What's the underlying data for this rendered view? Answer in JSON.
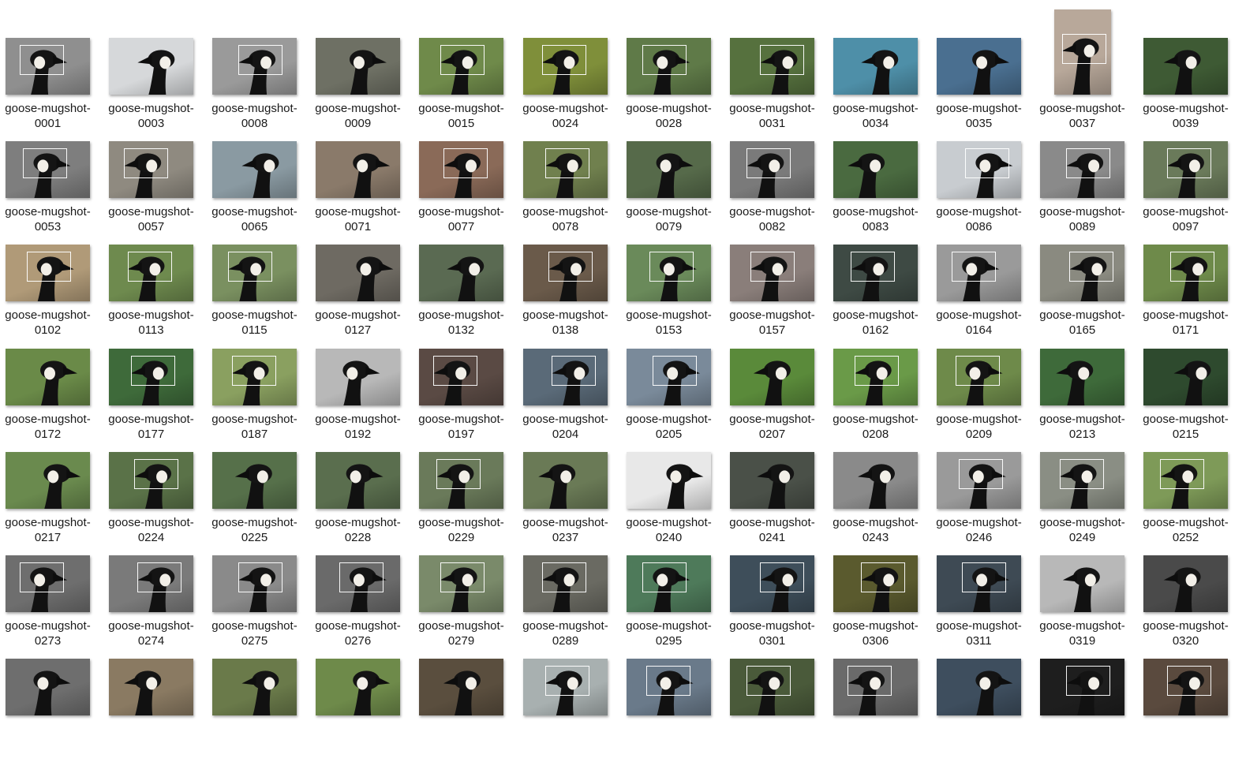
{
  "label_prefix": "goose-mugshot-",
  "columns": 12,
  "files": [
    {
      "num": "0001",
      "bg": "#8f8f8f",
      "box": true
    },
    {
      "num": "0003",
      "bg": "#d6d8da",
      "box": false
    },
    {
      "num": "0008",
      "bg": "#9a9a9a",
      "box": true
    },
    {
      "num": "0009",
      "bg": "#6e7064",
      "box": false
    },
    {
      "num": "0015",
      "bg": "#6f8a4a",
      "box": true
    },
    {
      "num": "0024",
      "bg": "#7f8f3a",
      "box": true
    },
    {
      "num": "0028",
      "bg": "#5f7a48",
      "box": true
    },
    {
      "num": "0031",
      "bg": "#56713e",
      "box": true
    },
    {
      "num": "0034",
      "bg": "#4e8fa8",
      "box": false
    },
    {
      "num": "0035",
      "bg": "#4a6f90",
      "box": false
    },
    {
      "num": "0037",
      "bg": "#b8a89a",
      "box": true,
      "tall": true
    },
    {
      "num": "0039",
      "bg": "#3e5a34",
      "box": false
    },
    {
      "num": "0053",
      "bg": "#7e7e7e",
      "box": true
    },
    {
      "num": "0057",
      "bg": "#8f8a80",
      "box": true
    },
    {
      "num": "0065",
      "bg": "#8a9aa2",
      "box": false
    },
    {
      "num": "0071",
      "bg": "#8a7a6a",
      "box": false
    },
    {
      "num": "0077",
      "bg": "#8a6a58",
      "box": true
    },
    {
      "num": "0078",
      "bg": "#70804e",
      "box": true
    },
    {
      "num": "0079",
      "bg": "#566a4a",
      "box": false
    },
    {
      "num": "0082",
      "bg": "#7a7a7a",
      "box": true
    },
    {
      "num": "0083",
      "bg": "#4a6a40",
      "box": false
    },
    {
      "num": "0086",
      "bg": "#c8ccd0",
      "box": true
    },
    {
      "num": "0089",
      "bg": "#8a8a8a",
      "box": true
    },
    {
      "num": "0097",
      "bg": "#6a7a5a",
      "box": true
    },
    {
      "num": "0102",
      "bg": "#b09a78",
      "box": true
    },
    {
      "num": "0113",
      "bg": "#6e8a4e",
      "box": true
    },
    {
      "num": "0115",
      "bg": "#7a9060",
      "box": true
    },
    {
      "num": "0127",
      "bg": "#6e6a62",
      "box": false
    },
    {
      "num": "0132",
      "bg": "#5a6a52",
      "box": false
    },
    {
      "num": "0138",
      "bg": "#6a5a4a",
      "box": true
    },
    {
      "num": "0153",
      "bg": "#6a8a5a",
      "box": true
    },
    {
      "num": "0157",
      "bg": "#8a7e7a",
      "box": true
    },
    {
      "num": "0162",
      "bg": "#3e4a44",
      "box": true
    },
    {
      "num": "0164",
      "bg": "#9a9a9a",
      "box": true
    },
    {
      "num": "0165",
      "bg": "#8a8a80",
      "box": true
    },
    {
      "num": "0171",
      "bg": "#6e8a4a",
      "box": true
    },
    {
      "num": "0172",
      "bg": "#6a8a48",
      "box": false
    },
    {
      "num": "0177",
      "bg": "#3e6a3a",
      "box": true
    },
    {
      "num": "0187",
      "bg": "#8aa060",
      "box": true
    },
    {
      "num": "0192",
      "bg": "#b8b8b8",
      "box": false
    },
    {
      "num": "0197",
      "bg": "#5a4a44",
      "box": true
    },
    {
      "num": "0204",
      "bg": "#5a6a78",
      "box": true
    },
    {
      "num": "0205",
      "bg": "#7a8a9a",
      "box": true
    },
    {
      "num": "0207",
      "bg": "#5a8a3a",
      "box": false
    },
    {
      "num": "0208",
      "bg": "#6a9a48",
      "box": true
    },
    {
      "num": "0209",
      "bg": "#6e8a4a",
      "box": true
    },
    {
      "num": "0213",
      "bg": "#3e6a3a",
      "box": false
    },
    {
      "num": "0215",
      "bg": "#2e4a2e",
      "box": false
    },
    {
      "num": "0217",
      "bg": "#6a8a4e",
      "box": false
    },
    {
      "num": "0224",
      "bg": "#5a7248",
      "box": true
    },
    {
      "num": "0225",
      "bg": "#56704a",
      "box": false
    },
    {
      "num": "0228",
      "bg": "#5a6e4e",
      "box": false
    },
    {
      "num": "0229",
      "bg": "#6a7a5a",
      "box": true
    },
    {
      "num": "0237",
      "bg": "#6a7a56",
      "box": false
    },
    {
      "num": "0240",
      "bg": "#e8e8e8",
      "box": false
    },
    {
      "num": "0241",
      "bg": "#4a5048",
      "box": false
    },
    {
      "num": "0243",
      "bg": "#8a8a8a",
      "box": false
    },
    {
      "num": "0246",
      "bg": "#9a9a9a",
      "box": true
    },
    {
      "num": "0249",
      "bg": "#8a8e84",
      "box": true
    },
    {
      "num": "0252",
      "bg": "#7e9a58",
      "box": true
    },
    {
      "num": "0273",
      "bg": "#6e6e6e",
      "box": true
    },
    {
      "num": "0274",
      "bg": "#7a7a7a",
      "box": true
    },
    {
      "num": "0275",
      "bg": "#8a8a8a",
      "box": true
    },
    {
      "num": "0276",
      "bg": "#6a6a6a",
      "box": true
    },
    {
      "num": "0279",
      "bg": "#7a8a6a",
      "box": true
    },
    {
      "num": "0289",
      "bg": "#6a6a62",
      "box": true
    },
    {
      "num": "0295",
      "bg": "#4e7a5a",
      "box": true
    },
    {
      "num": "0301",
      "bg": "#3e4e5a",
      "box": true
    },
    {
      "num": "0306",
      "bg": "#5a5a2e",
      "box": true
    },
    {
      "num": "0311",
      "bg": "#3e4a54",
      "box": true
    },
    {
      "num": "0319",
      "bg": "#b8b8b8",
      "box": false
    },
    {
      "num": "0320",
      "bg": "#4a4a4a",
      "box": false
    },
    {
      "num": "",
      "bg": "#6e6e6e",
      "box": false
    },
    {
      "num": "",
      "bg": "#8a7a62",
      "box": false
    },
    {
      "num": "",
      "bg": "#6a7a4a",
      "box": false
    },
    {
      "num": "",
      "bg": "#6e8a4a",
      "box": false
    },
    {
      "num": "",
      "bg": "#5a4e3e",
      "box": false
    },
    {
      "num": "",
      "bg": "#a8b0b0",
      "box": true
    },
    {
      "num": "",
      "bg": "#6a7a8a",
      "box": true
    },
    {
      "num": "",
      "bg": "#4a5a3a",
      "box": true
    },
    {
      "num": "",
      "bg": "#6a6a6a",
      "box": true
    },
    {
      "num": "",
      "bg": "#3e4e5e",
      "box": false
    },
    {
      "num": "",
      "bg": "#1e1e1e",
      "box": true
    },
    {
      "num": "",
      "bg": "#5a4a3e",
      "box": true
    }
  ]
}
